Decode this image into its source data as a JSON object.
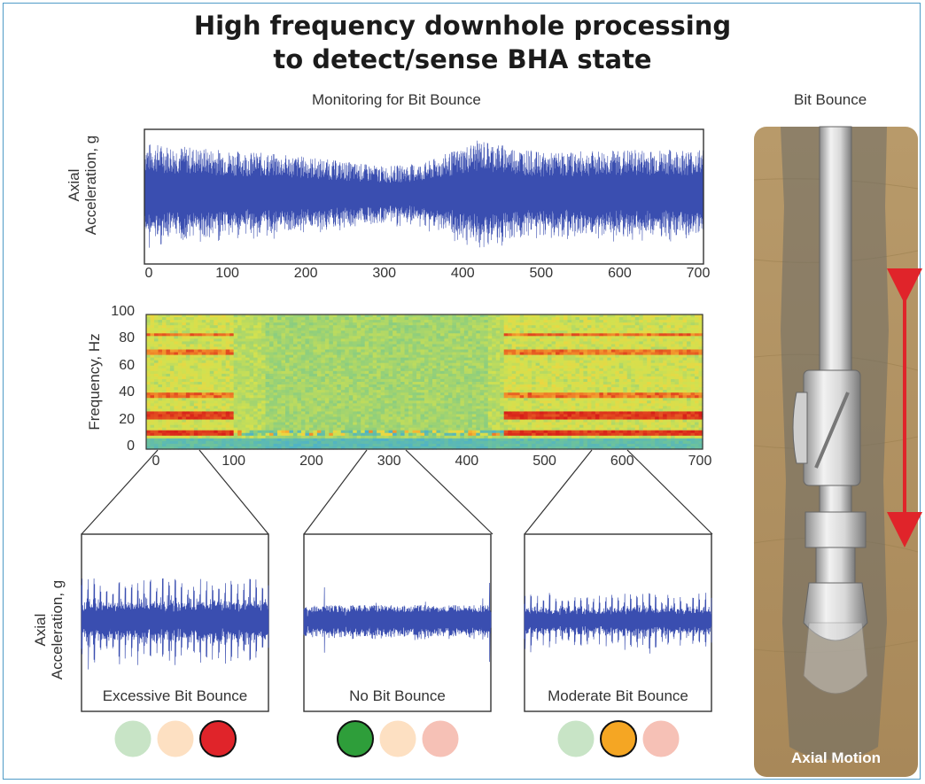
{
  "title_line1": "High frequency downhole processing",
  "title_line2": "to detect/sense BHA state",
  "monitor_title": "Monitoring for Bit Bounce",
  "right_title": "Bit Bounce",
  "right_caption": "Axial Motion",
  "colors": {
    "signal": "#3a4eb0",
    "border": "#4f9bc7",
    "indicator_green": "#2e9e3a",
    "indicator_orange": "#f5a623",
    "indicator_red": "#e0242a",
    "indicator_green_faded": "#c8e4c6",
    "indicator_orange_faded": "#fde0c2",
    "indicator_red_faded": "#f6c1b6"
  },
  "chart_data": [
    {
      "type": "line",
      "title": "",
      "ylabel_line1": "Axial",
      "ylabel_line2": "Acceleration, g",
      "xlim": [
        0,
        700
      ],
      "x_ticks": [
        "0",
        "100",
        "200",
        "300",
        "400",
        "500",
        "600",
        "700"
      ],
      "envelope_x": [
        0,
        50,
        100,
        200,
        300,
        350,
        420,
        500,
        600,
        700
      ],
      "envelope_amplitude": [
        0.8,
        0.75,
        0.7,
        0.6,
        0.45,
        0.5,
        0.85,
        0.65,
        0.7,
        0.7
      ]
    },
    {
      "type": "heatmap",
      "ylabel": "Frequency, Hz",
      "xlim": [
        0,
        700
      ],
      "ylim": [
        0,
        100
      ],
      "x_ticks": [
        "0",
        "100",
        "200",
        "300",
        "400",
        "500",
        "600",
        "700"
      ],
      "y_ticks": [
        "100",
        "80",
        "60",
        "40",
        "20",
        "0"
      ],
      "strong_bands_hz": [
        12,
        25
      ],
      "strong_band_regions": [
        [
          0,
          110
        ],
        [
          450,
          700
        ]
      ]
    },
    {
      "type": "line",
      "ylabel_line1": "Axial",
      "ylabel_line2": "Acceleration, g",
      "panels": [
        {
          "caption": "Excessive Bit Bounce",
          "source_range": [
            10,
            60
          ],
          "amplitude": 0.85,
          "state": "red"
        },
        {
          "caption": "No Bit Bounce",
          "source_range": [
            260,
            340
          ],
          "amplitude": 0.2,
          "state": "green"
        },
        {
          "caption": "Moderate Bit Bounce",
          "source_range": [
            580,
            640
          ],
          "amplitude": 0.55,
          "state": "orange"
        }
      ]
    }
  ]
}
